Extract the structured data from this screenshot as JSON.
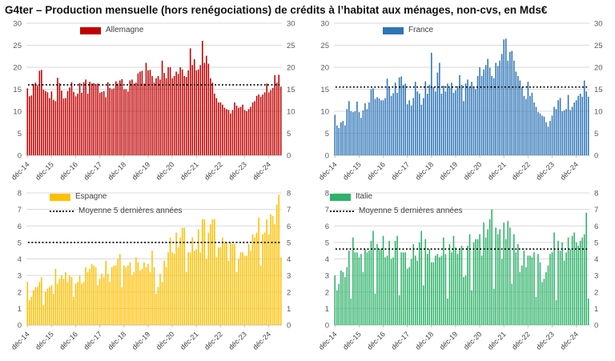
{
  "title": "G4ter – Production mensuelle (hors renégociations) de crédits à l’habitat aux ménages, non-cvs, en Mds€",
  "chart_data": [
    {
      "id": "allemagne",
      "type": "bar",
      "legend": "Allemagne",
      "color": "#C00000",
      "ylim": [
        0,
        30
      ],
      "y_ticks": [
        0,
        5,
        10,
        15,
        20,
        25,
        30
      ],
      "x_tick_labels": [
        "déc-14",
        "déc-15",
        "déc-16",
        "déc-17",
        "déc-18",
        "déc-19",
        "déc-20",
        "déc-21",
        "déc-22",
        "déc-23",
        "déc-24"
      ],
      "x_tick_every": 12,
      "mean_label": "Moyenne 5 dernières années",
      "mean_value": 16.0,
      "mean_in_legend": false,
      "values": [
        15.2,
        13.4,
        13.6,
        16.2,
        16.5,
        15.9,
        19.2,
        19.4,
        14.9,
        14.6,
        14.3,
        13.0,
        14.5,
        12.6,
        12.3,
        17.6,
        16.4,
        14.7,
        12.9,
        13.0,
        14.6,
        15.4,
        16.6,
        14.4,
        13.4,
        14.0,
        16.4,
        14.2,
        16.6,
        17.2,
        14.0,
        16.7,
        16.3,
        16.4,
        15.9,
        16.3,
        14.2,
        14.4,
        14.6,
        13.2,
        16.6,
        15.3,
        15.0,
        15.2,
        16.8,
        16.3,
        17.0,
        17.3,
        15.0,
        15.0,
        14.5,
        17.0,
        17.2,
        16.3,
        16.5,
        18.6,
        19.0,
        19.2,
        16.3,
        21.0,
        19.3,
        19.4,
        18.0,
        16.5,
        17.5,
        18.0,
        17.2,
        21.5,
        18.7,
        17.5,
        20.0,
        20.0,
        17.5,
        18.0,
        19.0,
        18.5,
        20.0,
        19.5,
        18.0,
        17.8,
        19.3,
        24.3,
        20.5,
        21.8,
        19.3,
        19.5,
        20.5,
        26.0,
        21.0,
        22.6,
        20.8,
        17.5,
        16.5,
        14.0,
        13.0,
        12.0,
        12.0,
        11.5,
        10.8,
        10.5,
        10.3,
        9.5,
        10.3,
        12.0,
        11.3,
        10.8,
        11.0,
        11.5,
        10.3,
        10.0,
        10.5,
        11.0,
        12.0,
        12.3,
        13.5,
        13.8,
        13.3,
        13.8,
        14.3,
        16.3,
        14.3,
        14.8,
        15.3,
        18.2,
        16.5,
        18.3,
        15.6
      ]
    },
    {
      "id": "france",
      "type": "bar",
      "legend": "France",
      "color": "#2E75B6",
      "ylim": [
        0,
        30
      ],
      "y_ticks": [
        0,
        5,
        10,
        15,
        20,
        25,
        30
      ],
      "x_tick_labels": [
        "déc-14",
        "déc-15",
        "déc-16",
        "déc-17",
        "déc-18",
        "déc-19",
        "déc-20",
        "déc-21",
        "déc-22",
        "déc-23",
        "déc-24"
      ],
      "x_tick_every": 12,
      "mean_label": "Moyenne 5 dernières années",
      "mean_value": 15.5,
      "mean_in_legend": false,
      "values": [
        9.2,
        6.8,
        6.2,
        7.5,
        7.8,
        6.8,
        10.5,
        12.3,
        10.0,
        9.8,
        10.0,
        12.2,
        9.8,
        8.5,
        10.2,
        11.8,
        10.5,
        12.0,
        15.0,
        15.2,
        12.8,
        13.2,
        12.9,
        12.5,
        12.5,
        13.0,
        17.4,
        15.4,
        13.5,
        14.1,
        16.5,
        14.2,
        17.7,
        17.9,
        16.0,
        16.3,
        11.6,
        12.5,
        11.3,
        13.0,
        16.7,
        14.5,
        14.0,
        11.5,
        13.0,
        16.8,
        14.0,
        16.0,
        23.3,
        15.5,
        14.5,
        18.8,
        21.0,
        14.0,
        15.8,
        14.5,
        16.3,
        15.3,
        16.5,
        14.2,
        14.8,
        15.7,
        18.2,
        16.0,
        12.3,
        16.3,
        17.2,
        15.4,
        16.7,
        15.5,
        15.0,
        18.0,
        20.0,
        18.0,
        19.5,
        20.5,
        21.9,
        19.9,
        18.0,
        17.5,
        21.0,
        20.3,
        21.5,
        23.0,
        26.3,
        26.5,
        21.5,
        23.5,
        23.7,
        21.5,
        19.0,
        18.0,
        17.0,
        15.5,
        13.5,
        12.8,
        16.7,
        13.5,
        14.2,
        12.0,
        11.0,
        9.8,
        9.5,
        9.0,
        8.8,
        7.5,
        6.5,
        7.8,
        9.0,
        11.0,
        10.5,
        12.5,
        13.0,
        10.0,
        10.2,
        10.5,
        13.7,
        10.3,
        11.0,
        12.0,
        12.5,
        13.5,
        14.0,
        13.3,
        17.0,
        14.5,
        13.3
      ]
    },
    {
      "id": "espagne",
      "type": "bar",
      "legend": "Espagne",
      "color": "#FFC000",
      "ylim": [
        0,
        8
      ],
      "y_ticks": [
        0,
        1,
        2,
        3,
        4,
        5,
        6,
        7,
        8
      ],
      "x_tick_labels": [
        "déc-14",
        "déc-15",
        "déc-16",
        "déc-17",
        "déc-18",
        "déc-19",
        "déc-20",
        "déc-21",
        "déc-22",
        "déc-23",
        "déc-24"
      ],
      "x_tick_every": 12,
      "mean_label": "Moyenne 5 dernières années",
      "mean_value": 5.0,
      "mean_in_legend": true,
      "values": [
        2.6,
        1.5,
        1.7,
        2.1,
        2.3,
        2.3,
        2.6,
        2.9,
        1.2,
        2.0,
        2.2,
        2.3,
        2.4,
        1.9,
        3.4,
        2.5,
        2.8,
        3.0,
        2.8,
        3.2,
        2.6,
        3.0,
        2.9,
        1.7,
        2.5,
        2.6,
        3.0,
        2.5,
        2.6,
        3.5,
        3.2,
        3.4,
        3.7,
        3.6,
        3.5,
        2.4,
        2.8,
        3.1,
        2.9,
        3.9,
        3.1,
        2.6,
        3.5,
        3.6,
        3.6,
        4.0,
        4.3,
        2.3,
        3.6,
        3.5,
        3.6,
        3.8,
        3.0,
        3.2,
        4.1,
        3.8,
        3.3,
        3.4,
        3.8,
        3.5,
        3.7,
        3.2,
        4.5,
        3.5,
        1.9,
        2.3,
        3.1,
        2.6,
        3.9,
        3.5,
        4.4,
        5.3,
        4.4,
        4.3,
        5.6,
        4.7,
        5.3,
        5.9,
        5.9,
        3.2,
        4.4,
        4.4,
        5.3,
        4.5,
        4.6,
        5.8,
        4.4,
        6.4,
        6.4,
        4.0,
        5.6,
        6.1,
        6.4,
        6.4,
        4.1,
        4.7,
        4.7,
        5.3,
        5.0,
        5.0,
        3.9,
        5.0,
        4.9,
        4.9,
        3.2,
        4.0,
        4.4,
        4.4,
        4.2,
        4.2,
        4.9,
        4.5,
        5.5,
        5.3,
        5.6,
        6.5,
        3.6,
        5.5,
        5.6,
        6.4,
        5.5,
        6.7,
        6.6,
        6.1,
        7.3,
        7.9,
        4.1
      ]
    },
    {
      "id": "italie",
      "type": "bar",
      "legend": "Italie",
      "color": "#2EB269",
      "ylim": [
        0,
        8
      ],
      "y_ticks": [
        0,
        1,
        2,
        3,
        4,
        5,
        6,
        7,
        8
      ],
      "x_tick_labels": [
        "déc-14",
        "déc-15",
        "déc-16",
        "déc-17",
        "déc-18",
        "déc-19",
        "déc-20",
        "déc-21",
        "déc-22",
        "déc-23",
        "déc-24"
      ],
      "x_tick_every": 12,
      "mean_label": "Moyenne 5 dernières années",
      "mean_value": 4.6,
      "mean_in_legend": true,
      "values": [
        3.0,
        2.1,
        2.5,
        3.3,
        3.2,
        2.9,
        3.5,
        4.5,
        1.6,
        5.3,
        4.4,
        4.4,
        4.1,
        4.3,
        3.2,
        4.6,
        4.4,
        4.5,
        5.1,
        5.7,
        1.9,
        4.9,
        4.6,
        4.6,
        5.4,
        4.1,
        4.2,
        5.1,
        4.0,
        4.1,
        5.1,
        5.4,
        1.8,
        4.4,
        4.4,
        4.4,
        3.4,
        3.5,
        4.0,
        4.9,
        4.2,
        3.9,
        5.0,
        5.7,
        2.4,
        5.2,
        4.3,
        4.6,
        3.8,
        3.8,
        4.2,
        4.3,
        4.1,
        4.2,
        5.3,
        4.3,
        1.6,
        4.9,
        4.4,
        5.4,
        4.7,
        4.3,
        4.6,
        4.8,
        2.9,
        3.0,
        4.8,
        5.5,
        2.1,
        5.0,
        5.2,
        5.2,
        5.5,
        4.2,
        6.2,
        5.3,
        5.8,
        6.4,
        7.0,
        2.2,
        5.9,
        5.5,
        5.8,
        4.0,
        6.2,
        5.2,
        6.3,
        5.9,
        2.5,
        5.5,
        4.4,
        4.9,
        3.2,
        3.6,
        4.5,
        3.5,
        4.2,
        4.2,
        4.1,
        4.4,
        1.7,
        4.3,
        3.8,
        2.6,
        2.8,
        3.2,
        3.6,
        4.3,
        4.4,
        5.6,
        1.5,
        5.1,
        4.5,
        5.0,
        3.9,
        4.4,
        5.3,
        4.6,
        5.4,
        5.6,
        5.0,
        4.8,
        5.1,
        5.3,
        5.5,
        6.8,
        1.6
      ]
    }
  ]
}
